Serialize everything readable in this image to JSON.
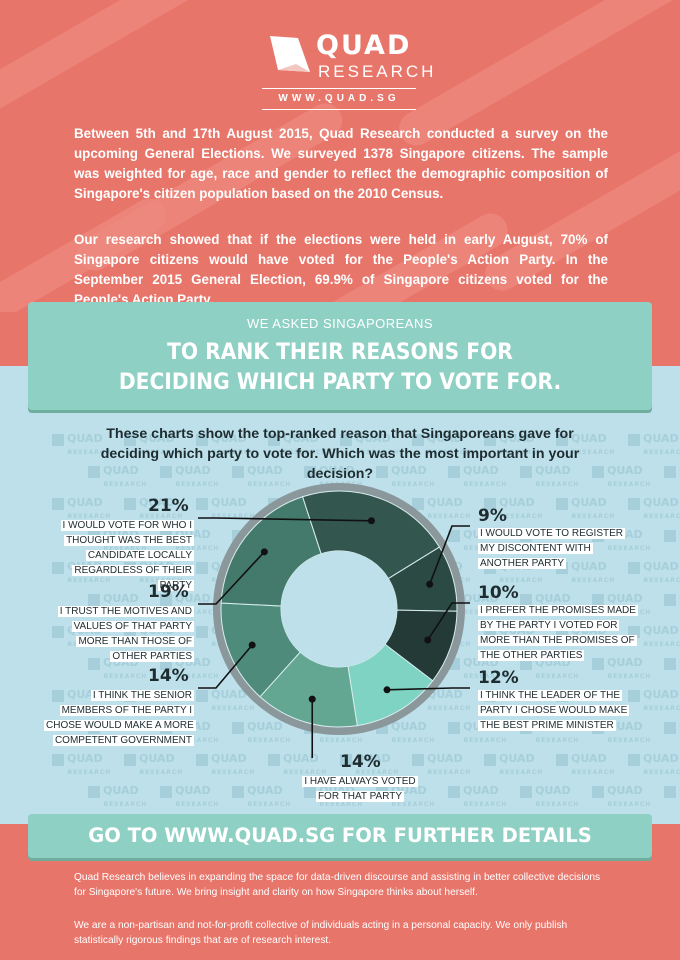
{
  "header": {
    "logo_top": "QUAD",
    "logo_bottom": "RESEARCH",
    "url": "WWW.QUAD.SG"
  },
  "intro": {
    "paragraph1": "Between 5th and 17th August 2015, Quad Research conducted a survey on the upcoming General Elections. We surveyed 1378 Singapore citizens. The sample was weighted for age, race and gender to reflect the demographic composition of Singapore's citizen population based on the 2010 Census.",
    "paragraph2": "Our research showed that if the elections were held in early August, 70% of Singapore citizens would have voted for the People's Action Party.  In the September 2015 General Election, 69.9% of Singapore citizens voted for the People's Action Party."
  },
  "banner": {
    "subtitle": "WE ASKED SINGAPOREANS",
    "title_line1": "TO RANK THEIR REASONS FOR",
    "title_line2": "DECIDING WHICH PARTY TO VOTE FOR."
  },
  "description": "These charts show the top-ranked reason that Singaporeans gave for deciding which party to vote for. Which was the most important in your decision?",
  "watermark": {
    "top": "QUAD",
    "bottom": "RESEARCH"
  },
  "chart_data": {
    "type": "pie",
    "title": "",
    "categories": [
      "I WOULD VOTE FOR WHO I THOUGHT WAS THE BEST CANDIDATE LOCALLY REGARDLESS OF THEIR PARTY",
      "I WOULD VOTE TO REGISTER MY DISCONTENT WITH ANOTHER PARTY",
      "I PREFER THE PROMISES MADE BY THE PARTY I VOTED FOR MORE THAN THE PROMISES OF THE OTHER PARTIES",
      "I THINK THE LEADER OF THE PARTY I CHOSE WOULD MAKE THE BEST PRIME MINISTER",
      "I HAVE ALWAYS VOTED FOR THAT PARTY",
      "I THINK THE SENIOR MEMBERS OF THE PARTY I CHOSE WOULD MAKE A MORE COMPETENT GOVERNMENT",
      "I TRUST THE MOTIVES AND VALUES OF THAT PARTY MORE THAN THOSE OF OTHER PARTIES"
    ],
    "values": [
      21,
      9,
      10,
      12,
      14,
      14,
      19
    ],
    "labels": [
      "21%",
      "9%",
      "10%",
      "12%",
      "14%",
      "14%",
      "19%"
    ],
    "colors": [
      "#33574f",
      "#2b4a44",
      "#233a37",
      "#7ed3c2",
      "#63a793",
      "#4e8b7b",
      "#447a6b"
    ],
    "donut": true,
    "ring_color": "#8a979b"
  },
  "cta": "GO TO WWW.QUAD.SG FOR FURTHER DETAILS",
  "footer": {
    "paragraph1": "Quad Research believes in expanding the space for data-driven discourse and assisting in better collective decisions for Singapore's future. We bring insight and clarity on how Singapore thinks about herself.",
    "paragraph2": "We are a non-partisan and not-for-profit collective of individuals acting in a personal capacity. We only publish statistically rigorous findings that are of research interest."
  },
  "colors": {
    "coral": "#e8756a",
    "mint": "#8fd0c4",
    "light_blue": "#bde0ea",
    "dark_text": "#1e2c30"
  }
}
